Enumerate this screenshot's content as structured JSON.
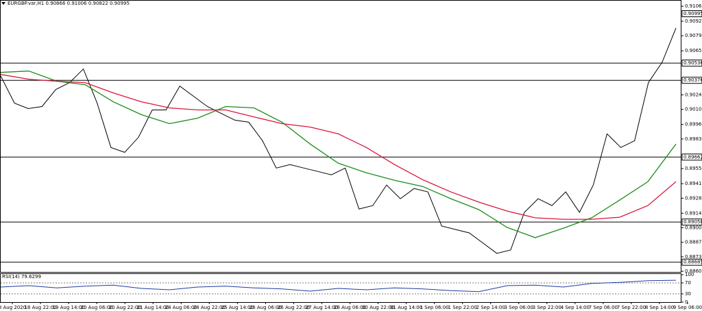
{
  "chart_data": [
    {
      "type": "line",
      "title": "EURGBP.var,H1  0.90866 0.91006 0.90822 0.90995",
      "ylim": [
        0.88594,
        0.91116
      ],
      "yticks": [
        0.91065,
        0.90925,
        {
          "value": 0.9079,
          "label": "0.90790"
        },
        {
          "value": 0.9065,
          "label": "0.90650"
        },
        {
          "value": 0.9024,
          "label": "0.90240"
        },
        0.90105,
        0.89965,
        {
          "value": 0.8983,
          "label": "0.89830"
        },
        0.89555,
        0.89415,
        {
          "value": 0.8928,
          "label": "0.89280"
        },
        {
          "value": 0.8914,
          "label": "0.89140"
        },
        0.89005,
        {
          "value": 0.8887,
          "label": "0.88870"
        },
        0.88735,
        {
          "value": 0.886,
          "label": "0.88600"
        }
      ],
      "levels": [
        {
          "value": 0.90536,
          "label": "0.90536"
        },
        {
          "value": 0.90376,
          "label": "0.90376"
        },
        {
          "value": 0.89662,
          "label": "0.89662"
        },
        {
          "value": 0.89058,
          "label": "0.89058"
        },
        {
          "value": 0.88685,
          "label": "0.88685"
        }
      ],
      "current_price": {
        "value": 0.90995,
        "label": "0.90995"
      },
      "time_labels": [
        "8 Aug 2020",
        "18 Aug 22:00",
        "19 Aug 14:00",
        "20 Aug 06:00",
        "20 Aug 22:00",
        "21 Aug 14:00",
        "24 Aug 06:00",
        "24 Aug 22:00",
        "25 Aug 14:00",
        "26 Aug 06:00",
        "26 Aug 22:00",
        "27 Aug 14:00",
        "28 Aug 06:00",
        "30 Aug 22:00",
        "31 Aug 14:00",
        "1 Sep 06:00",
        "1 Sep 22:00",
        "2 Sep 14:00",
        "3 Sep 06:00",
        "3 Sep 22:00",
        "4 Sep 14:00",
        "7 Sep 06:00",
        "7 Sep 22:00",
        "8 Sep 14:00",
        "9 Sep 06:00"
      ],
      "series": [
        {
          "color": "#000000",
          "values": [
            0.90417,
            0.90163,
            0.90113,
            0.90132,
            0.9029,
            0.90354,
            0.90481,
            0.90163,
            0.89751,
            0.89706,
            0.89846,
            0.901,
            0.901,
            0.90322,
            0.90227,
            0.90132,
            0.90068,
            0.90005,
            0.89986,
            0.89814,
            0.8956,
            0.89592,
            0.8956,
            0.89529,
            0.89497,
            0.8956,
            0.89179,
            0.89211,
            0.89402,
            0.89275,
            0.8937,
            0.89338,
            0.89021,
            0.88989,
            0.88957,
            0.88862,
            0.88767,
            0.88798,
            0.89148,
            0.89275,
            0.89211,
            0.89338,
            0.89148,
            0.89402,
            0.89878,
            0.89751,
            0.89814,
            0.90354,
            0.90544,
            0.90862
          ]
        },
        {
          "color": "#1a8c1a",
          "values": [
            0.90449,
            0.90462,
            0.90367,
            0.90335,
            0.90176,
            0.90056,
            0.89973,
            0.90024,
            0.90132,
            0.90119,
            0.89986,
            0.89783,
            0.89605,
            0.89516,
            0.89446,
            0.89389,
            0.89275,
            0.89173,
            0.89008,
            0.88913,
            0.89001,
            0.89097,
            0.89262,
            0.89433,
            0.89783
          ]
        },
        {
          "color": "#dc143c",
          "values": [
            0.9043,
            0.90386,
            0.90367,
            0.90354,
            0.90259,
            0.90176,
            0.90119,
            0.901,
            0.901,
            0.90036,
            0.89973,
            0.89941,
            0.89878,
            0.89751,
            0.89592,
            0.89452,
            0.89338,
            0.89243,
            0.8916,
            0.89097,
            0.89084,
            0.89084,
            0.89103,
            0.89211,
            0.89433
          ]
        }
      ]
    },
    {
      "type": "line",
      "title": "RSI(14) 79.6299",
      "ylim": [
        0,
        100
      ],
      "yticks": [
        0,
        30,
        70,
        100
      ],
      "series": [
        {
          "color": "#1e3ca0",
          "values": [
            55,
            60,
            52,
            58,
            62,
            50,
            45,
            55,
            58,
            52,
            48,
            40,
            50,
            45,
            52,
            48,
            42,
            38,
            60,
            62,
            55,
            68,
            72,
            78,
            79.6299
          ]
        }
      ]
    }
  ]
}
